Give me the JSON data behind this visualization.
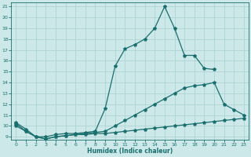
{
  "bg_color": "#cde8e8",
  "grid_color": "#a8d0d0",
  "line_color": "#1a6e6e",
  "xlabel": "Humidex (Indice chaleur)",
  "xmin": 0,
  "xmax": 23,
  "ymin": 9,
  "ymax": 21,
  "line1_x": [
    0,
    1,
    2,
    3,
    4,
    5,
    6,
    7,
    8,
    9,
    10,
    11,
    12,
    13,
    14,
    15,
    16,
    17,
    18,
    19,
    20
  ],
  "line1_y": [
    10.3,
    9.7,
    9.0,
    9.0,
    9.2,
    9.3,
    9.3,
    9.4,
    9.5,
    11.6,
    15.5,
    17.1,
    17.5,
    18.0,
    19.0,
    21.0,
    19.0,
    16.5,
    16.5,
    15.3,
    15.2
  ],
  "line2_x": [
    0,
    1,
    2,
    3,
    4,
    5,
    6,
    7,
    8,
    9,
    10,
    11,
    12,
    13,
    14,
    15,
    16,
    17,
    18,
    19,
    20,
    21,
    22,
    23
  ],
  "line2_y": [
    10.0,
    9.5,
    9.0,
    8.8,
    9.0,
    9.1,
    9.2,
    9.3,
    9.4,
    9.5,
    10.0,
    10.5,
    11.0,
    11.5,
    12.0,
    12.5,
    13.0,
    13.5,
    13.7,
    13.8,
    14.0,
    12.0,
    11.5,
    11.0
  ],
  "line3_x": [
    0,
    1,
    2,
    3,
    4,
    5,
    6,
    7,
    8,
    9,
    10,
    11,
    12,
    13,
    14,
    15,
    16,
    17,
    18,
    19,
    20,
    21,
    22,
    23
  ],
  "line3_y": [
    10.2,
    9.5,
    9.0,
    8.8,
    9.0,
    9.1,
    9.2,
    9.2,
    9.3,
    9.3,
    9.4,
    9.5,
    9.6,
    9.7,
    9.8,
    9.9,
    10.0,
    10.1,
    10.2,
    10.3,
    10.4,
    10.5,
    10.6,
    10.7
  ]
}
